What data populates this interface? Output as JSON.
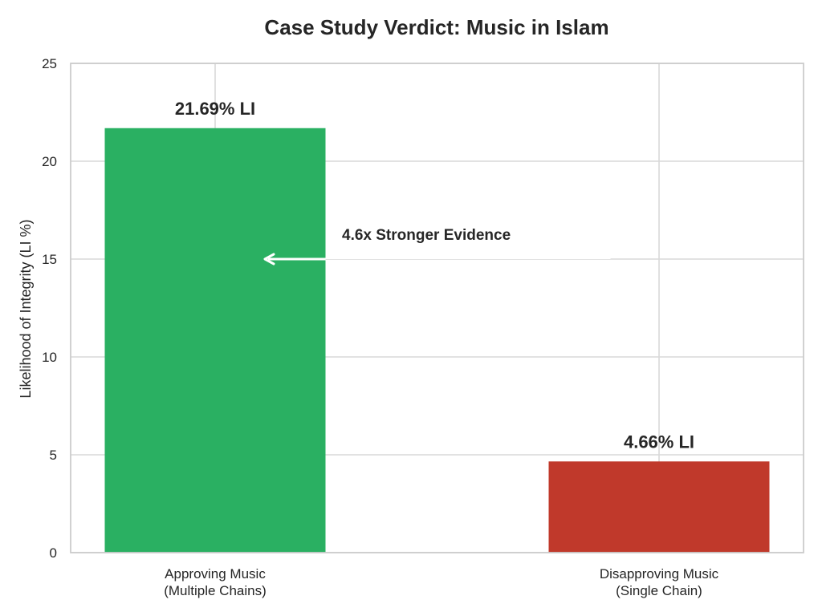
{
  "chart_data": {
    "type": "bar",
    "title": "Case Study Verdict: Music in Islam",
    "xlabel": "",
    "ylabel": "Likelihood of Integrity (LI %)",
    "ylim": [
      0,
      25
    ],
    "yticks": [
      "0",
      "5",
      "10",
      "15",
      "20",
      "25"
    ],
    "grid": true,
    "categories": [
      [
        "Approving Music",
        "(Multiple Chains)"
      ],
      [
        "Disapproving Music",
        "(Single Chain)"
      ]
    ],
    "values": [
      21.69,
      4.66
    ],
    "data_labels": [
      "21.69% LI",
      "4.66% LI"
    ],
    "colors": [
      "#2ab062",
      "#c0392b"
    ],
    "annotation": {
      "text": "4.6x Stronger Evidence",
      "arrow_target": {
        "category_index": 0,
        "y": 15
      }
    }
  }
}
